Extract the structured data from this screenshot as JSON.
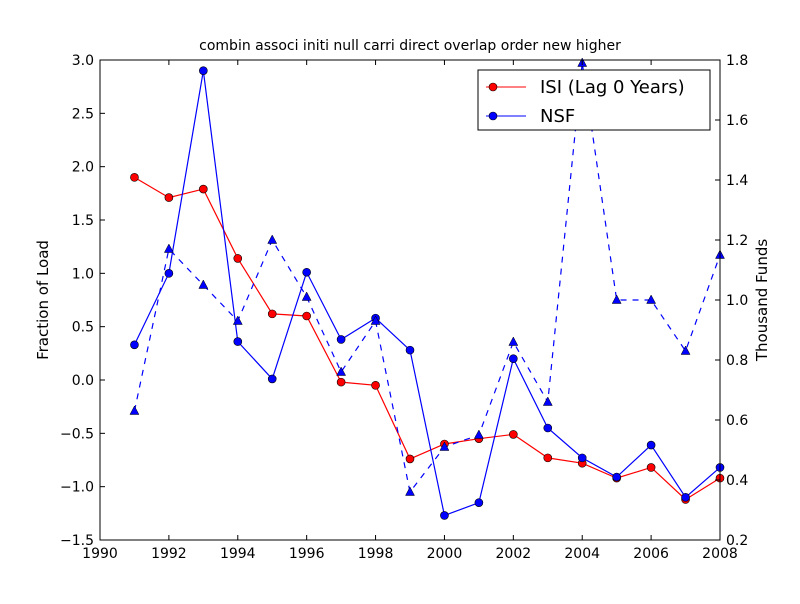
{
  "chart_data": {
    "type": "line",
    "title": "combin associ initi null carri direct overlap order new higher",
    "xlabel": "",
    "ylabel": "Fraction of Load",
    "y2label": "Thousand Funds",
    "xlim": [
      1990,
      2008
    ],
    "ylim": [
      -1.5,
      3.0
    ],
    "y2lim": [
      0.2,
      1.8
    ],
    "xticks": [
      "1990",
      "1992",
      "1994",
      "1996",
      "1998",
      "2000",
      "2002",
      "2004",
      "2006",
      "2008"
    ],
    "yticks": [
      "−1.5",
      "−1.0",
      "−0.5",
      "0.0",
      "0.5",
      "1.0",
      "1.5",
      "2.0",
      "2.5",
      "3.0"
    ],
    "y2ticks": [
      "0.2",
      "0.4",
      "0.6",
      "0.8",
      "1.0",
      "1.2",
      "1.4",
      "1.6",
      "1.8"
    ],
    "grid": false,
    "legend_position": "top-right",
    "x": [
      1991,
      1992,
      1993,
      1994,
      1995,
      1996,
      1997,
      1998,
      1999,
      2000,
      2001,
      2002,
      2003,
      2004,
      2005,
      2006,
      2007,
      2008
    ],
    "series": [
      {
        "name": "ISI (Lag 0 Years)",
        "axis": "left",
        "color": "#ff0000",
        "style": "solid",
        "marker": "circle",
        "values": [
          1.9,
          1.71,
          1.79,
          1.14,
          0.62,
          0.6,
          -0.02,
          -0.05,
          -0.74,
          -0.6,
          -0.55,
          -0.51,
          -0.73,
          -0.78,
          -0.92,
          -0.82,
          -1.12,
          -0.92
        ]
      },
      {
        "name": "NSF",
        "axis": "left",
        "color": "#0000ff",
        "style": "solid",
        "marker": "circle",
        "values": [
          0.33,
          1.0,
          2.9,
          0.36,
          0.01,
          1.01,
          0.38,
          0.58,
          0.28,
          -1.27,
          -1.15,
          0.2,
          -0.45,
          -0.73,
          -0.91,
          -0.61,
          -1.1,
          -0.82
        ]
      },
      {
        "name": "",
        "axis": "right",
        "color": "#0000ff",
        "style": "dashed",
        "marker": "triangle",
        "values": [
          0.63,
          1.17,
          1.05,
          0.93,
          1.2,
          1.01,
          0.76,
          0.93,
          0.36,
          0.51,
          0.55,
          0.86,
          0.66,
          1.79,
          1.0,
          1.0,
          0.83,
          1.15
        ]
      }
    ]
  }
}
